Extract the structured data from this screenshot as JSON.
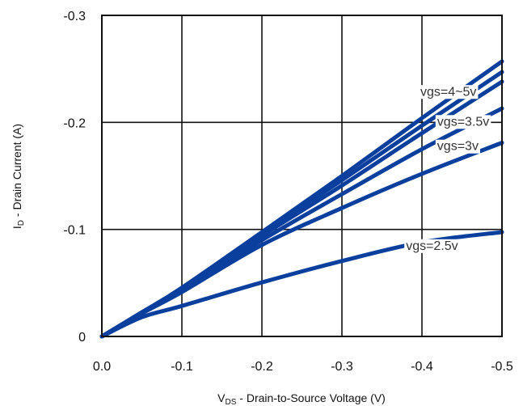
{
  "chart_data": {
    "type": "line",
    "title": "",
    "xlabel": {
      "prefix": "V",
      "subscript": "DS",
      "suffix": " - Drain-to-Source Voltage (V)"
    },
    "ylabel": {
      "prefix": "I",
      "subscript": "D",
      "suffix": " - Drain Current (A)"
    },
    "xlim": [
      0.0,
      -0.5
    ],
    "ylim": [
      0,
      -0.3
    ],
    "x_ticks": [
      0.0,
      -0.1,
      -0.2,
      -0.3,
      -0.4,
      -0.5
    ],
    "x_tick_labels": [
      "0.0",
      "-0.1",
      "-0.2",
      "-0.3",
      "-0.4",
      "-0.5"
    ],
    "y_ticks": [
      0,
      -0.1,
      -0.2,
      -0.3
    ],
    "y_tick_labels": [
      "0",
      "-0.1",
      "-0.2",
      "-0.3"
    ],
    "grid": true,
    "line_color": "#0a3f9e",
    "series": [
      {
        "x": [
          0,
          -0.05,
          -0.1,
          -0.2,
          -0.3,
          -0.4,
          -0.5
        ],
        "y": [
          0,
          -0.0225,
          -0.0455,
          -0.0975,
          -0.15,
          -0.204,
          -0.257
        ]
      },
      {
        "x": [
          0,
          -0.05,
          -0.1,
          -0.2,
          -0.3,
          -0.4,
          -0.5
        ],
        "y": [
          0,
          -0.0225,
          -0.0455,
          -0.0965,
          -0.146,
          -0.197,
          -0.247
        ]
      },
      {
        "x": [
          0,
          -0.05,
          -0.1,
          -0.2,
          -0.3,
          -0.4,
          -0.5
        ],
        "y": [
          0,
          -0.0225,
          -0.0445,
          -0.094,
          -0.141,
          -0.19,
          -0.238
        ]
      },
      {
        "x": [
          0,
          -0.05,
          -0.1,
          -0.2,
          -0.3,
          -0.4,
          -0.5
        ],
        "y": [
          0,
          -0.022,
          -0.0435,
          -0.09,
          -0.133,
          -0.175,
          -0.213
        ]
      },
      {
        "x": [
          0,
          -0.05,
          -0.1,
          -0.2,
          -0.3,
          -0.4,
          -0.5
        ],
        "y": [
          0,
          -0.0215,
          -0.0415,
          -0.0855,
          -0.12,
          -0.152,
          -0.181
        ]
      },
      {
        "x": [
          0,
          -0.05,
          -0.1,
          -0.2,
          -0.3,
          -0.4,
          -0.5
        ],
        "y": [
          0,
          -0.018,
          -0.0285,
          -0.0505,
          -0.0705,
          -0.088,
          -0.0975
        ]
      }
    ],
    "annotations": [
      {
        "text": "vgs=4~5v",
        "x": -0.398,
        "y": -0.225
      },
      {
        "text": "vgs=3.5v",
        "x": -0.419,
        "y": -0.197
      },
      {
        "text": "vgs=3v",
        "x": -0.419,
        "y": -0.174
      },
      {
        "text": "vgs=2.5v",
        "x": -0.38,
        "y": -0.081
      }
    ]
  }
}
